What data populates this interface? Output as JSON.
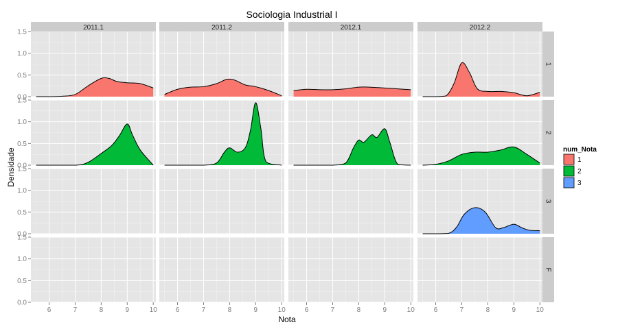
{
  "chart_data": {
    "type": "area",
    "title": "Sociologia Industrial I",
    "xlabel": "Nota",
    "ylabel": "Densidade",
    "xlim": [
      5.3,
      10.1
    ],
    "ylim": [
      0,
      1.5
    ],
    "x_ticks": [
      6,
      7,
      8,
      9,
      10
    ],
    "y_ticks": [
      0.0,
      0.5,
      1.0,
      1.5
    ],
    "y_tick_labels": [
      "0.0",
      "0.5",
      "1.0",
      "1.5"
    ],
    "grid": true,
    "legend": {
      "title": "num_Nota",
      "position": "right",
      "entries": [
        {
          "label": "1",
          "color": "#F8766D"
        },
        {
          "label": "2",
          "color": "#00BA38"
        },
        {
          "label": "3",
          "color": "#619CFF"
        }
      ]
    },
    "columns": [
      "2011.1",
      "2011.2",
      "2012.1",
      "2012.2"
    ],
    "rows": [
      "1",
      "2",
      "3",
      "F"
    ],
    "panels": [
      {
        "row": "1",
        "col": "2011.1",
        "color": "#F8766D",
        "x": [
          5.5,
          6,
          6.5,
          7,
          7.5,
          8,
          8.3,
          8.6,
          9,
          9.5,
          10
        ],
        "y": [
          0,
          0,
          0.01,
          0.05,
          0.25,
          0.42,
          0.42,
          0.35,
          0.32,
          0.3,
          0.2
        ]
      },
      {
        "row": "1",
        "col": "2011.2",
        "color": "#F8766D",
        "x": [
          5.5,
          6,
          6.5,
          7,
          7.5,
          7.9,
          8.2,
          8.6,
          9,
          9.5,
          10
        ],
        "y": [
          0.05,
          0.17,
          0.22,
          0.23,
          0.3,
          0.4,
          0.38,
          0.27,
          0.23,
          0.14,
          0.02
        ]
      },
      {
        "row": "1",
        "col": "2012.1",
        "color": "#F8766D",
        "x": [
          5.5,
          6,
          6.5,
          7,
          7.5,
          8,
          8.4,
          9,
          9.5,
          10
        ],
        "y": [
          0.14,
          0.17,
          0.16,
          0.16,
          0.18,
          0.22,
          0.22,
          0.2,
          0.18,
          0.16
        ]
      },
      {
        "row": "1",
        "col": "2012.2",
        "color": "#F8766D",
        "x": [
          5.5,
          6,
          6.4,
          6.7,
          7,
          7.3,
          7.6,
          8,
          8.5,
          9,
          9.5,
          10
        ],
        "y": [
          0,
          0,
          0.02,
          0.3,
          0.78,
          0.55,
          0.18,
          0.12,
          0.12,
          0.09,
          0.02,
          0.1
        ]
      },
      {
        "row": "2",
        "col": "2011.1",
        "color": "#00BA38",
        "x": [
          5.5,
          6,
          6.5,
          7,
          7.3,
          7.6,
          8,
          8.4,
          8.7,
          9,
          9.2,
          9.5,
          10
        ],
        "y": [
          0,
          0,
          0,
          0,
          0.02,
          0.1,
          0.27,
          0.45,
          0.68,
          0.95,
          0.7,
          0.35,
          0
        ]
      },
      {
        "row": "2",
        "col": "2011.2",
        "color": "#00BA38",
        "x": [
          5.5,
          6,
          6.5,
          7,
          7.5,
          7.8,
          8,
          8.3,
          8.6,
          8.8,
          9,
          9.2,
          9.4,
          10
        ],
        "y": [
          0,
          0,
          0,
          0,
          0.05,
          0.3,
          0.4,
          0.3,
          0.4,
          0.8,
          1.44,
          0.85,
          0.08,
          0
        ]
      },
      {
        "row": "2",
        "col": "2012.1",
        "color": "#00BA38",
        "x": [
          5.5,
          6,
          6.5,
          7,
          7.5,
          7.8,
          8,
          8.2,
          8.5,
          8.7,
          9,
          9.2,
          9.5,
          10
        ],
        "y": [
          0,
          0,
          0,
          0,
          0.05,
          0.4,
          0.58,
          0.53,
          0.7,
          0.64,
          0.84,
          0.52,
          0.02,
          0
        ]
      },
      {
        "row": "2",
        "col": "2012.2",
        "color": "#00BA38",
        "x": [
          5.5,
          6,
          6.5,
          7,
          7.5,
          8,
          8.5,
          9,
          9.5,
          10
        ],
        "y": [
          0,
          0.02,
          0.1,
          0.25,
          0.3,
          0.3,
          0.35,
          0.42,
          0.25,
          0.05
        ]
      },
      {
        "row": "3",
        "col": "2012.2",
        "color": "#619CFF",
        "x": [
          5.5,
          6,
          6.5,
          6.8,
          7.1,
          7.5,
          7.9,
          8.3,
          8.6,
          9,
          9.3,
          9.6,
          10
        ],
        "y": [
          0,
          0,
          0.01,
          0.15,
          0.45,
          0.6,
          0.5,
          0.14,
          0.14,
          0.22,
          0.14,
          0.08,
          0.07
        ]
      }
    ]
  }
}
